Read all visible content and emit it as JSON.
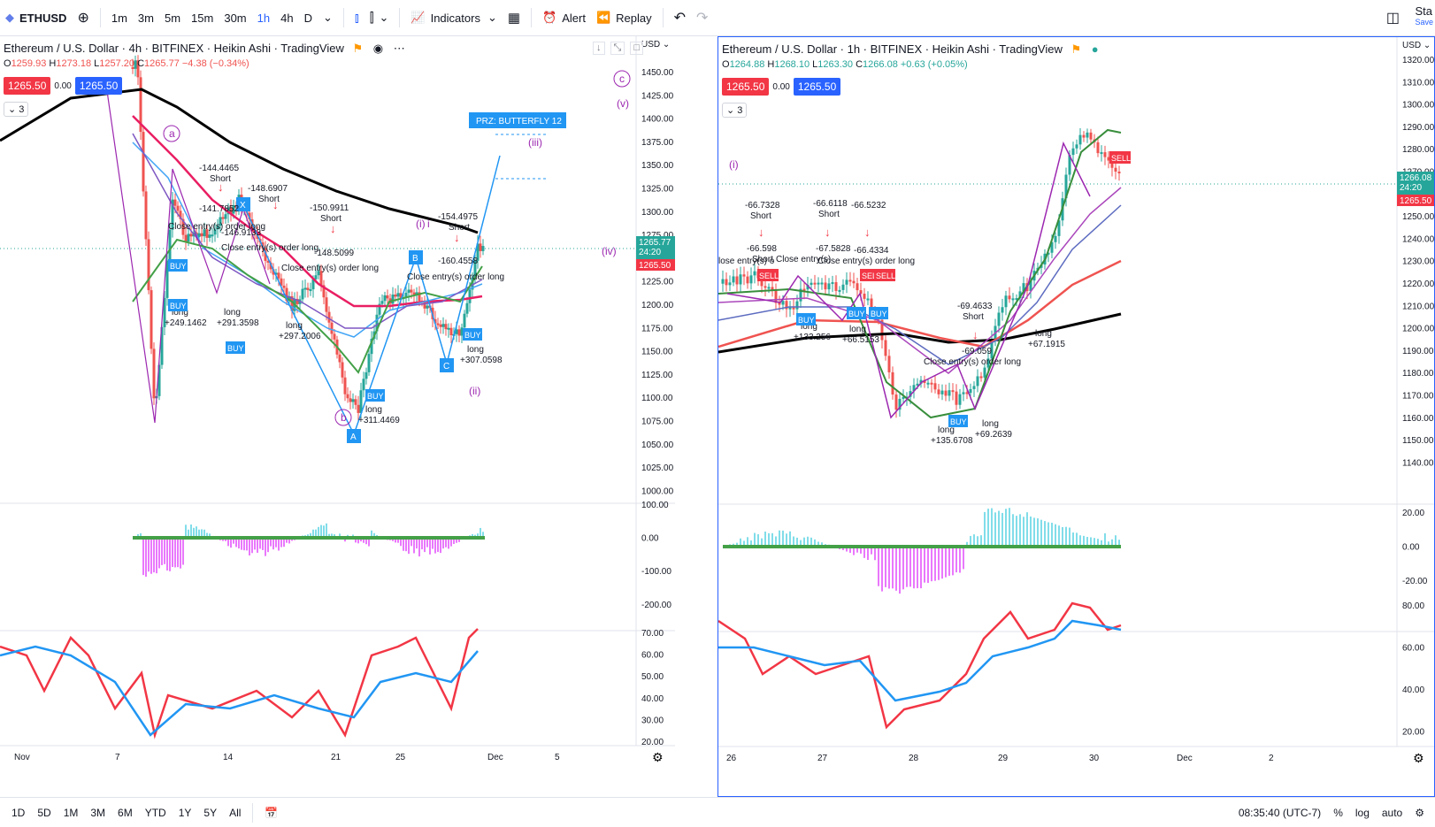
{
  "toolbar": {
    "symbol": "ETHUSD",
    "intervals": [
      "1m",
      "3m",
      "5m",
      "15m",
      "30m",
      "1h",
      "4h",
      "D"
    ],
    "active_interval": "1h",
    "indicators_label": "Indicators",
    "alert_label": "Alert",
    "replay_label": "Replay",
    "right_label": "Sta",
    "right_sublabel": "Save"
  },
  "left_chart": {
    "title": "Ethereum / U.S. Dollar · 4h · BITFINEX · Heikin Ashi · TradingView",
    "ohlc": {
      "o": "1259.93",
      "h": "1273.18",
      "l": "1257.20",
      "c": "1265.77",
      "chg": "−4.38 (−0.34%)"
    },
    "bid": "1265.50",
    "spread": "0.00",
    "ask": "1265.50",
    "collapse_count": "3",
    "currency": "USD",
    "price_ticks": [
      "1450.00",
      "1425.00",
      "1400.00",
      "1375.00",
      "1350.00",
      "1325.00",
      "1300.00",
      "1275.00",
      "1250.00",
      "1225.00",
      "1200.00",
      "1175.00",
      "1150.00",
      "1125.00",
      "1100.00",
      "1075.00",
      "1050.00",
      "1025.00",
      "1000.00"
    ],
    "last_price": "1265.77",
    "countdown": "24:20",
    "last_bid": "1265.50",
    "osc_ticks": [
      "100.00",
      "0.00",
      "-100.00",
      "-200.00"
    ],
    "rsi_ticks": [
      "70.00",
      "60.00",
      "50.00",
      "40.00",
      "30.00",
      "20.00"
    ],
    "time_ticks": [
      "Nov",
      "7",
      "14",
      "21",
      "25",
      "Dec",
      "5"
    ],
    "prz_label": "PRZ: BUTTERFLY 12",
    "wave_labels": [
      "a",
      "b",
      "c",
      "(i)",
      "(ii)",
      "(iii)",
      "(iv)",
      "(v)",
      "i"
    ],
    "pattern_points": [
      "X",
      "A",
      "B",
      "C"
    ],
    "annotations": [
      {
        "t": "-144.4465",
        "s": "Short"
      },
      {
        "t": "-141.7852",
        "s": ""
      },
      {
        "t": "-148.6907",
        "s": "Short"
      },
      {
        "t": "-146.9133",
        "s": ""
      },
      {
        "t": "-150.9911",
        "s": "Short"
      },
      {
        "t": "-148.5099",
        "s": ""
      },
      {
        "t": "-154.4975",
        "s": "Short"
      },
      {
        "t": "-160.4558",
        "s": ""
      }
    ],
    "close_labels": [
      "Close entry(s) order long",
      "Close entry(s) order long",
      "Close entry(s) order long",
      "Close entry(s) order long"
    ],
    "long_labels": [
      {
        "t": "long",
        "v": "+249.1462"
      },
      {
        "t": "long",
        "v": "+291.3598"
      },
      {
        "t": "long",
        "v": "+297.2006"
      },
      {
        "t": "long",
        "v": "+311.4469"
      },
      {
        "t": "long",
        "v": "+307.0598"
      }
    ],
    "buy_label": "BUY"
  },
  "right_chart": {
    "title": "Ethereum / U.S. Dollar · 1h · BITFINEX · Heikin Ashi · TradingView",
    "ohlc": {
      "o": "1264.88",
      "h": "1268.10",
      "l": "1263.30",
      "c": "1266.08",
      "chg": "+0.63 (+0.05%)"
    },
    "bid": "1265.50",
    "spread": "0.00",
    "ask": "1265.50",
    "collapse_count": "3",
    "currency": "USD",
    "price_ticks": [
      "1320.00",
      "1310.00",
      "1300.00",
      "1290.00",
      "1280.00",
      "1270.00",
      "1260.00",
      "1250.00",
      "1240.00",
      "1230.00",
      "1220.00",
      "1210.00",
      "1200.00",
      "1190.00",
      "1180.00",
      "1170.00",
      "1160.00",
      "1150.00",
      "1140.00"
    ],
    "last_price": "1266.08",
    "countdown": "24:20",
    "last_bid": "1265.50",
    "osc_ticks": [
      "20.00",
      "0.00",
      "-20.00"
    ],
    "rsi_ticks": [
      "80.00",
      "60.00",
      "40.00",
      "20.00"
    ],
    "time_ticks": [
      "26",
      "27",
      "28",
      "29",
      "30",
      "Dec",
      "2"
    ],
    "wave_label": "(i)",
    "annotations": [
      {
        "t": "-66.7328",
        "s": "Short"
      },
      {
        "t": "-66.598",
        "s": "Short"
      },
      {
        "t": "-66.6118",
        "s": "Short"
      },
      {
        "t": "-67.5828",
        "s": ""
      },
      {
        "t": "-66.5232",
        "s": ""
      },
      {
        "t": "-66.4334",
        "s": ""
      },
      {
        "t": "-69.4633",
        "s": "Short"
      },
      {
        "t": "-69.059",
        "s": ""
      }
    ],
    "close_labels": [
      "lose entry(s) o",
      "Close entry(s)",
      "Close entry(s) order long",
      "Close entry(s) order long"
    ],
    "long_labels": [
      {
        "t": "long",
        "v": "+133.256"
      },
      {
        "t": "long",
        "v": "+66.5153"
      },
      {
        "t": "long",
        "v": "+135.6708"
      },
      {
        "t": "long",
        "v": "+69.2639"
      },
      {
        "t": "long",
        "v": "+67.1915"
      }
    ],
    "sell_label": "SELL",
    "buy_label": "BUY"
  },
  "bottom": {
    "ranges": [
      "1D",
      "5D",
      "1M",
      "3M",
      "6M",
      "YTD",
      "1Y",
      "5Y",
      "All"
    ],
    "time": "08:35:40 (UTC-7)",
    "pct": "%",
    "log": "log",
    "auto": "auto"
  },
  "colors": {
    "red": "#f23645",
    "blue": "#2962ff",
    "teal": "#26a69a",
    "rsi_red": "#f23645",
    "rsi_blue": "#2196f3",
    "ma_black": "#000000",
    "ma_crimson": "#e91e63",
    "purple": "#9c27b0"
  }
}
